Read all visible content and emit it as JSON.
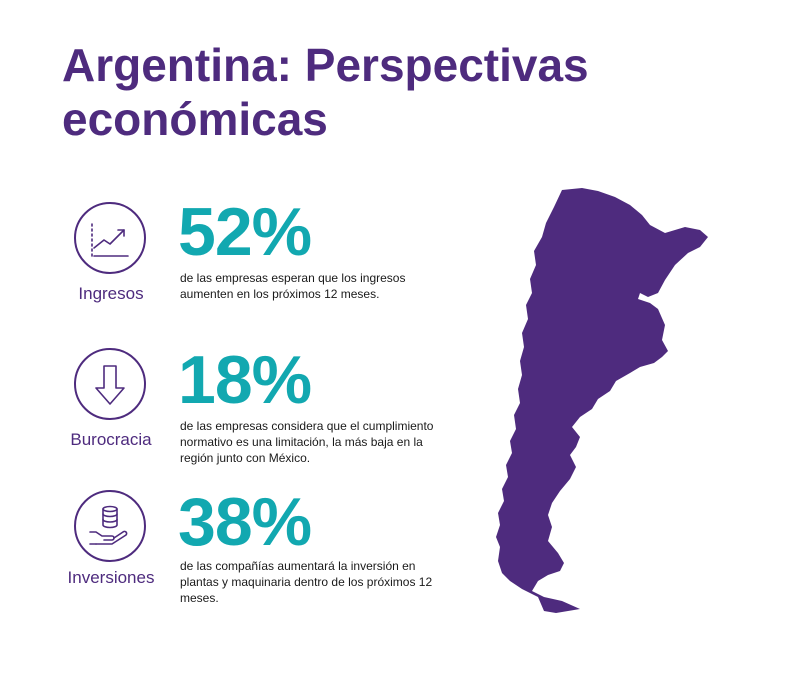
{
  "title": "Argentina: Perspectivas económicas",
  "colors": {
    "purple": "#4e2b7e",
    "teal": "#12a8b0"
  },
  "stats": [
    {
      "icon": "trend-up-chart-icon",
      "label": "Ingresos",
      "value": "52%",
      "description": "de las empresas esperan que los ingresos aumenten en los próximos 12 meses."
    },
    {
      "icon": "down-arrow-icon",
      "label": "Burocracia",
      "value": "18%",
      "description": "de las empresas considera que el cumplimiento normativo es una limitación, la más baja en la región junto con México."
    },
    {
      "icon": "coins-in-hand-icon",
      "label": "Inversiones",
      "value": "38%",
      "description": "de las compañías aumentará la inversión en plantas y maquinaria dentro de los próximos 12 meses."
    }
  ],
  "map": {
    "icon": "argentina-map-icon"
  }
}
